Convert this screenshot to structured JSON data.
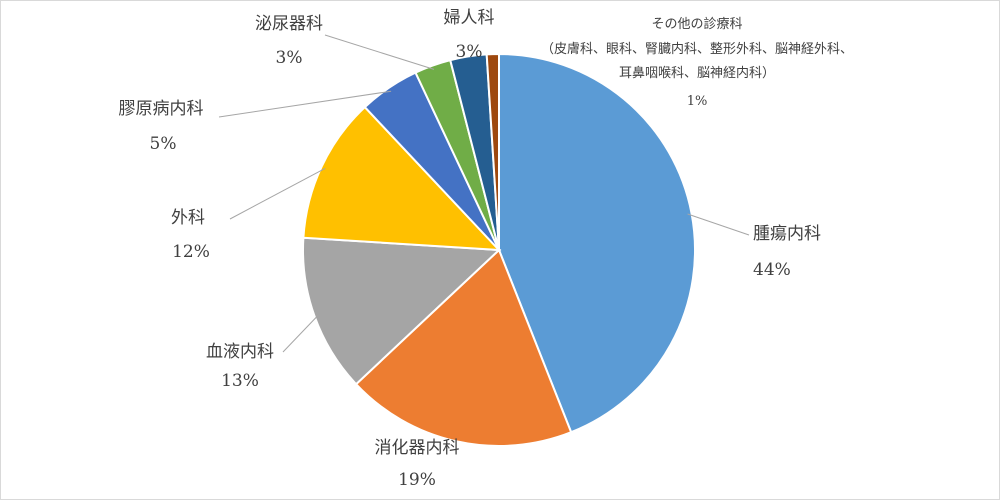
{
  "chart_data": {
    "type": "pie",
    "title": "",
    "legend": "none",
    "start_angle_deg": 0,
    "direction": "clockwise",
    "slices": [
      {
        "label": "腫瘍内科",
        "value": 44,
        "value_label": "44%",
        "color": "#5b9bd5"
      },
      {
        "label": "消化器内科",
        "value": 19,
        "value_label": "19%",
        "color": "#ed7d31"
      },
      {
        "label": "血液内科",
        "value": 13,
        "value_label": "13%",
        "color": "#a5a5a5"
      },
      {
        "label": "外科",
        "value": 12,
        "value_label": "12%",
        "color": "#ffc000"
      },
      {
        "label": "膠原病内科",
        "value": 5,
        "value_label": "5%",
        "color": "#4472c4"
      },
      {
        "label": "泌尿器科",
        "value": 3,
        "value_label": "3%",
        "color": "#70ad47"
      },
      {
        "label": "婦人科",
        "value": 3,
        "value_label": "3%",
        "color": "#255e91"
      },
      {
        "label": "その他の診療科",
        "label_lines": [
          "（皮膚科、眼科、腎臓内科、整形外科、脳神経外科、",
          "耳鼻咽喉科、脳神経内科）"
        ],
        "value": 1,
        "value_label": "1%",
        "color": "#9e480e"
      }
    ]
  }
}
